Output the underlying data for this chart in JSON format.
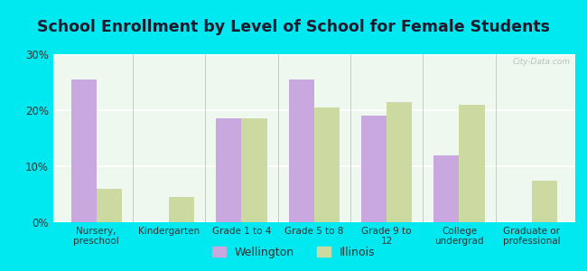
{
  "title": "School Enrollment by Level of School for Female Students",
  "categories": [
    "Nursery,\npreschool",
    "Kindergarten",
    "Grade 1 to 4",
    "Grade 5 to 8",
    "Grade 9 to\n12",
    "College\nundergrad",
    "Graduate or\nprofessional"
  ],
  "wellington": [
    25.5,
    0,
    18.5,
    25.5,
    19.0,
    12.0,
    0
  ],
  "illinois": [
    6.0,
    4.5,
    18.5,
    20.5,
    21.5,
    21.0,
    7.5
  ],
  "wellington_color": "#c9a8e0",
  "illinois_color": "#ccd9a0",
  "background_outer": "#00e8f0",
  "background_inner": "#eef8ee",
  "ylim": [
    0,
    30
  ],
  "yticks": [
    0,
    10,
    20,
    30
  ],
  "ytick_labels": [
    "0%",
    "10%",
    "20%",
    "30%"
  ],
  "bar_width": 0.35,
  "title_fontsize": 12.5,
  "legend_labels": [
    "Wellington",
    "Illinois"
  ],
  "watermark": "City-Data.com"
}
